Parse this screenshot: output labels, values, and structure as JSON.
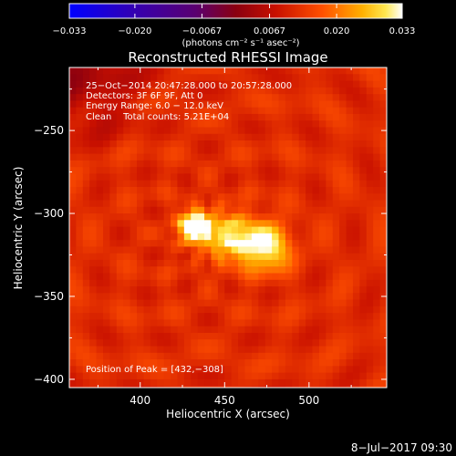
{
  "chart_data": {
    "type": "heatmap",
    "title": "Reconstructed RHESSI Image",
    "xlabel": "Heliocentric X (arcsec)",
    "ylabel": "Heliocentric Y (arcsec)",
    "xlim": [
      358,
      546
    ],
    "ylim": [
      -405,
      -212
    ],
    "x_ticks": [
      400,
      450,
      500
    ],
    "y_ticks": [
      -250,
      -300,
      -350,
      -400
    ],
    "x_tick_labels": [
      "400",
      "450",
      "500"
    ],
    "y_tick_labels": [
      "−250",
      "−300",
      "−350",
      "−400"
    ],
    "colorbar": {
      "min": -0.033,
      "max": 0.033,
      "ticks": [
        -0.033,
        -0.02,
        -0.0067,
        0.0067,
        0.02,
        0.033
      ],
      "tick_labels": [
        "−0.033",
        "−0.020",
        "−0.0067",
        "0.0067",
        "0.020",
        "0.033"
      ],
      "units": "(photons cm⁻² s⁻¹ asec⁻²)",
      "colormap": "blue-purple-red-orange-yellow-white"
    },
    "info_lines": [
      "25−Oct−2014 20:47:28.000 to 20:57:28.000",
      "Detectors: 3F 6F 9F, Att 0",
      "Energy Range: 6.0 − 12.0 keV",
      "Clean    Total counts: 5.21E+04"
    ],
    "peak_label": "Position of Peak = [432,−308]",
    "sources": [
      {
        "x": 432,
        "y": -308,
        "sigma": 6,
        "amplitude": 0.033
      },
      {
        "x": 474,
        "y": -320,
        "sigma": 10,
        "amplitude": 0.022
      },
      {
        "x": 452,
        "y": -314,
        "sigma": 10,
        "amplitude": 0.018
      }
    ],
    "background_level": 0.012
  },
  "footer_date": "8−Jul−2017 09:30"
}
